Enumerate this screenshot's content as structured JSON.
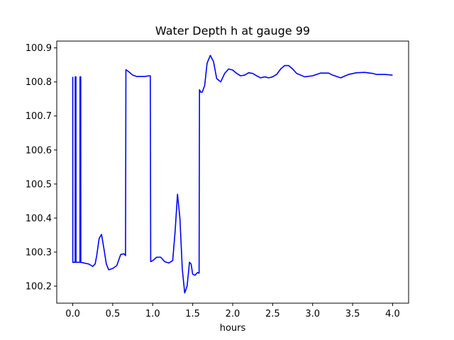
{
  "chart_data": {
    "type": "line",
    "title": "Water Depth h at gauge 99",
    "xlabel": "hours",
    "ylabel": "",
    "xlim": [
      -0.2,
      4.2
    ],
    "ylim": [
      100.15,
      100.92
    ],
    "grid": false,
    "xticks": [
      0.0,
      0.5,
      1.0,
      1.5,
      2.0,
      2.5,
      3.0,
      3.5,
      4.0
    ],
    "xtick_labels": [
      "0.0",
      "0.5",
      "1.0",
      "1.5",
      "2.0",
      "2.5",
      "3.0",
      "3.5",
      "4.0"
    ],
    "yticks": [
      100.2,
      100.3,
      100.4,
      100.5,
      100.6,
      100.7,
      100.8,
      100.9
    ],
    "ytick_labels": [
      "100.2",
      "100.3",
      "100.4",
      "100.5",
      "100.6",
      "100.7",
      "100.8",
      "100.9"
    ],
    "series": [
      {
        "color": "#0000ff",
        "points": [
          [
            0.0,
            100.815
          ],
          [
            0.001,
            100.27
          ],
          [
            0.03,
            100.27
          ],
          [
            0.031,
            100.815
          ],
          [
            0.04,
            100.815
          ],
          [
            0.041,
            100.27
          ],
          [
            0.09,
            100.27
          ],
          [
            0.091,
            100.815
          ],
          [
            0.1,
            100.815
          ],
          [
            0.101,
            100.27
          ],
          [
            0.2,
            100.265
          ],
          [
            0.25,
            100.258
          ],
          [
            0.28,
            100.265
          ],
          [
            0.3,
            100.29
          ],
          [
            0.33,
            100.34
          ],
          [
            0.36,
            100.352
          ],
          [
            0.39,
            100.31
          ],
          [
            0.42,
            100.265
          ],
          [
            0.45,
            100.248
          ],
          [
            0.5,
            100.252
          ],
          [
            0.55,
            100.26
          ],
          [
            0.6,
            100.293
          ],
          [
            0.64,
            100.295
          ],
          [
            0.66,
            100.29
          ],
          [
            0.665,
            100.836
          ],
          [
            0.7,
            100.83
          ],
          [
            0.75,
            100.82
          ],
          [
            0.8,
            100.816
          ],
          [
            0.9,
            100.816
          ],
          [
            0.96,
            100.818
          ],
          [
            0.97,
            100.818
          ],
          [
            0.975,
            100.272
          ],
          [
            1.0,
            100.275
          ],
          [
            1.05,
            100.285
          ],
          [
            1.1,
            100.285
          ],
          [
            1.15,
            100.272
          ],
          [
            1.2,
            100.268
          ],
          [
            1.25,
            100.275
          ],
          [
            1.28,
            100.36
          ],
          [
            1.31,
            100.47
          ],
          [
            1.34,
            100.4
          ],
          [
            1.37,
            100.25
          ],
          [
            1.4,
            100.18
          ],
          [
            1.43,
            100.2
          ],
          [
            1.46,
            100.27
          ],
          [
            1.48,
            100.265
          ],
          [
            1.5,
            100.235
          ],
          [
            1.53,
            100.232
          ],
          [
            1.56,
            100.24
          ],
          [
            1.58,
            100.238
          ],
          [
            1.585,
            100.777
          ],
          [
            1.6,
            100.77
          ],
          [
            1.62,
            100.77
          ],
          [
            1.65,
            100.79
          ],
          [
            1.68,
            100.855
          ],
          [
            1.72,
            100.878
          ],
          [
            1.76,
            100.86
          ],
          [
            1.8,
            100.81
          ],
          [
            1.85,
            100.8
          ],
          [
            1.9,
            100.825
          ],
          [
            1.95,
            100.838
          ],
          [
            2.0,
            100.835
          ],
          [
            2.05,
            100.825
          ],
          [
            2.1,
            100.818
          ],
          [
            2.15,
            100.82
          ],
          [
            2.2,
            100.827
          ],
          [
            2.25,
            100.825
          ],
          [
            2.3,
            100.818
          ],
          [
            2.35,
            100.812
          ],
          [
            2.4,
            100.815
          ],
          [
            2.45,
            100.812
          ],
          [
            2.5,
            100.815
          ],
          [
            2.55,
            100.822
          ],
          [
            2.6,
            100.838
          ],
          [
            2.65,
            100.848
          ],
          [
            2.7,
            100.848
          ],
          [
            2.75,
            100.838
          ],
          [
            2.8,
            100.825
          ],
          [
            2.9,
            100.815
          ],
          [
            3.0,
            100.818
          ],
          [
            3.1,
            100.826
          ],
          [
            3.2,
            100.826
          ],
          [
            3.25,
            100.82
          ],
          [
            3.35,
            100.812
          ],
          [
            3.45,
            100.822
          ],
          [
            3.55,
            100.827
          ],
          [
            3.65,
            100.828
          ],
          [
            3.75,
            100.825
          ],
          [
            3.8,
            100.822
          ],
          [
            3.9,
            100.822
          ],
          [
            4.0,
            100.82
          ]
        ]
      }
    ]
  }
}
